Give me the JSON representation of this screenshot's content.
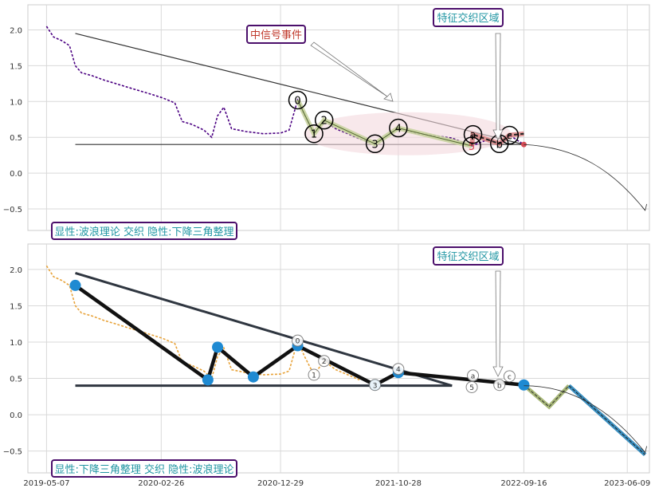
{
  "chart_data": [
    {
      "type": "line",
      "panel": "top",
      "title": "",
      "xlabel": "",
      "ylabel": "",
      "xlim": [
        "2019-03-20",
        "2023-08-05"
      ],
      "ylim": [
        -0.8,
        2.35
      ],
      "yticks": [
        -0.5,
        0.0,
        0.5,
        1.0,
        1.5,
        2.0
      ],
      "ytick_labels": [
        "−0.5",
        "0.0",
        "0.5",
        "1.0",
        "1.5",
        "2.0"
      ],
      "grid": true,
      "colors": {
        "price": "#4b0082",
        "triangle": "#333333",
        "wave_fill": "#c8d3a0",
        "highlight": "#f3d9de",
        "red_dot": "#d64b55",
        "box_text": "#2196a3",
        "box_border": "#4b0f6b",
        "event_text": "#c0392b"
      },
      "annotations": {
        "feature_area": "特征交织区域",
        "signal_event": "中信号事件",
        "legend_box": "显性:波浪理论 交织 隐性:下降三角整理"
      },
      "wave_points": [
        {
          "label": "0",
          "x": "2021-02-11",
          "y": 1.02
        },
        {
          "label": "1",
          "x": "2021-03-25",
          "y": 0.55
        },
        {
          "label": "2",
          "x": "2021-04-20",
          "y": 0.74
        },
        {
          "label": "3",
          "x": "2021-08-29",
          "y": 0.41
        },
        {
          "label": "4",
          "x": "2021-10-28",
          "y": 0.63
        },
        {
          "label": "5",
          "x": "2022-05-05",
          "y": 0.38
        },
        {
          "label": "a",
          "x": "2022-05-08",
          "y": 0.54
        },
        {
          "label": "b",
          "x": "2022-07-15",
          "y": 0.41
        },
        {
          "label": "c",
          "x": "2022-08-10",
          "y": 0.53
        }
      ],
      "triangle": [
        {
          "x": "2019-07-20",
          "y": 1.95
        },
        {
          "x": "2022-09-16",
          "y": 0.4
        },
        {
          "x": "2019-07-20",
          "y": 0.4
        }
      ],
      "price_series": [
        [
          "2019-05-07",
          2.05
        ],
        [
          "2019-05-25",
          1.9
        ],
        [
          "2019-06-15",
          1.85
        ],
        [
          "2019-07-05",
          1.78
        ],
        [
          "2019-07-20",
          1.5
        ],
        [
          "2019-08-05",
          1.4
        ],
        [
          "2019-09-01",
          1.36
        ],
        [
          "2019-10-01",
          1.3
        ],
        [
          "2019-11-01",
          1.25
        ],
        [
          "2019-12-01",
          1.2
        ],
        [
          "2020-01-01",
          1.15
        ],
        [
          "2020-02-01",
          1.1
        ],
        [
          "2020-03-01",
          1.05
        ],
        [
          "2020-04-01",
          0.98
        ],
        [
          "2020-04-20",
          0.72
        ],
        [
          "2020-05-15",
          0.68
        ],
        [
          "2020-06-15",
          0.6
        ],
        [
          "2020-07-05",
          0.5
        ],
        [
          "2020-07-20",
          0.8
        ],
        [
          "2020-08-05",
          0.92
        ],
        [
          "2020-08-25",
          0.62
        ],
        [
          "2020-10-01",
          0.58
        ],
        [
          "2020-11-15",
          0.55
        ],
        [
          "2020-12-29",
          0.56
        ],
        [
          "2021-01-20",
          0.6
        ],
        [
          "2021-02-11",
          1.02
        ],
        [
          "2021-03-01",
          0.8
        ],
        [
          "2021-03-25",
          0.55
        ],
        [
          "2021-04-20",
          0.74
        ],
        [
          "2021-05-20",
          0.62
        ],
        [
          "2021-06-20",
          0.55
        ],
        [
          "2021-07-20",
          0.48
        ],
        [
          "2021-08-29",
          0.41
        ],
        [
          "2021-10-28",
          0.63
        ],
        [
          "2021-12-15",
          0.55
        ],
        [
          "2022-02-01",
          0.52
        ],
        [
          "2022-03-15",
          0.49
        ],
        [
          "2022-05-05",
          0.38
        ],
        [
          "2022-06-15",
          0.47
        ],
        [
          "2022-07-15",
          0.41
        ],
        [
          "2022-08-10",
          0.53
        ],
        [
          "2022-09-16",
          0.4
        ]
      ],
      "forecast_curve": [
        [
          "2022-09-16",
          0.4
        ],
        [
          "2023-02-01",
          0.36
        ],
        [
          "2023-05-01",
          0.05
        ],
        [
          "2023-07-25",
          -0.52
        ]
      ]
    },
    {
      "type": "line",
      "panel": "bottom",
      "title": "",
      "xlabel": "",
      "ylabel": "",
      "xlim": [
        "2019-03-20",
        "2023-08-05"
      ],
      "ylim": [
        -0.8,
        2.35
      ],
      "yticks": [
        -0.5,
        0.0,
        0.5,
        1.0,
        1.5,
        2.0
      ],
      "ytick_labels": [
        "−0.5",
        "0.0",
        "0.5",
        "1.0",
        "1.5",
        "2.0"
      ],
      "xticks": [
        "2019-05-07",
        "2020-02-26",
        "2020-12-29",
        "2021-10-28",
        "2022-09-16",
        "2023-06-09"
      ],
      "xtick_labels": [
        "2019-05-07",
        "2020-02-26",
        "2020-12-29",
        "2021-10-28",
        "2022-09-16",
        "2023-06-09"
      ],
      "grid": true,
      "colors": {
        "price": "#e8a33a",
        "triangle": "#2f3640",
        "pattern": "#111111",
        "pivot": "#1f8ad2",
        "forecast_fill": "#3a8fc0",
        "green_seg": "#a8b878",
        "box_text": "#2196a3",
        "box_border": "#4b0f6b"
      },
      "annotations": {
        "feature_area": "特征交织区域",
        "legend_box": "显性:下降三角整理 交织 隐性:波浪理论"
      },
      "pivot_points": [
        {
          "x": "2019-07-20",
          "y": 1.78
        },
        {
          "x": "2020-06-25",
          "y": 0.48
        },
        {
          "x": "2020-07-20",
          "y": 0.93
        },
        {
          "x": "2020-10-20",
          "y": 0.52
        },
        {
          "x": "2021-02-11",
          "y": 0.95
        },
        {
          "x": "2021-08-29",
          "y": 0.41
        },
        {
          "x": "2021-10-28",
          "y": 0.58
        },
        {
          "x": "2022-09-16",
          "y": 0.41
        }
      ],
      "wave_labels": [
        {
          "label": "0",
          "x": "2021-02-11",
          "y": 1.02
        },
        {
          "label": "1",
          "x": "2021-03-25",
          "y": 0.55
        },
        {
          "label": "2",
          "x": "2021-04-20",
          "y": 0.74
        },
        {
          "label": "3",
          "x": "2021-08-29",
          "y": 0.41
        },
        {
          "label": "4",
          "x": "2021-10-28",
          "y": 0.63
        },
        {
          "label": "5",
          "x": "2022-05-05",
          "y": 0.38
        },
        {
          "label": "a",
          "x": "2022-05-08",
          "y": 0.54
        },
        {
          "label": "b",
          "x": "2022-07-15",
          "y": 0.41
        },
        {
          "label": "c",
          "x": "2022-08-10",
          "y": 0.53
        }
      ],
      "triangle": [
        {
          "x": "2019-07-20",
          "y": 1.95
        },
        {
          "x": "2022-03-15",
          "y": 0.4
        },
        {
          "x": "2019-07-20",
          "y": 0.4
        }
      ],
      "forecast_path": [
        [
          "2022-09-16",
          0.41
        ],
        [
          "2022-11-20",
          0.11
        ],
        [
          "2023-01-10",
          0.4
        ],
        [
          "2023-07-25",
          -0.55
        ]
      ],
      "forecast_curve": [
        [
          "2022-09-16",
          0.4
        ],
        [
          "2023-01-20",
          0.4
        ],
        [
          "2023-05-01",
          0.05
        ],
        [
          "2023-07-25",
          -0.52
        ]
      ],
      "price_series": [
        [
          "2019-05-07",
          2.05
        ],
        [
          "2019-05-25",
          1.9
        ],
        [
          "2019-06-15",
          1.85
        ],
        [
          "2019-07-05",
          1.78
        ],
        [
          "2019-07-20",
          1.5
        ],
        [
          "2019-08-05",
          1.4
        ],
        [
          "2019-09-01",
          1.36
        ],
        [
          "2019-10-01",
          1.3
        ],
        [
          "2019-11-01",
          1.25
        ],
        [
          "2019-12-01",
          1.2
        ],
        [
          "2020-01-01",
          1.15
        ],
        [
          "2020-02-01",
          1.1
        ],
        [
          "2020-03-01",
          1.05
        ],
        [
          "2020-04-01",
          0.98
        ],
        [
          "2020-04-20",
          0.72
        ],
        [
          "2020-05-15",
          0.68
        ],
        [
          "2020-06-15",
          0.6
        ],
        [
          "2020-07-05",
          0.5
        ],
        [
          "2020-07-20",
          0.8
        ],
        [
          "2020-08-05",
          0.92
        ],
        [
          "2020-08-25",
          0.62
        ],
        [
          "2020-10-01",
          0.58
        ],
        [
          "2020-11-15",
          0.55
        ],
        [
          "2020-12-29",
          0.56
        ],
        [
          "2021-01-20",
          0.6
        ],
        [
          "2021-02-11",
          1.02
        ],
        [
          "2021-03-01",
          0.8
        ],
        [
          "2021-03-25",
          0.55
        ],
        [
          "2021-04-20",
          0.74
        ],
        [
          "2021-05-20",
          0.62
        ],
        [
          "2021-06-20",
          0.55
        ],
        [
          "2021-07-20",
          0.48
        ]
      ]
    }
  ]
}
